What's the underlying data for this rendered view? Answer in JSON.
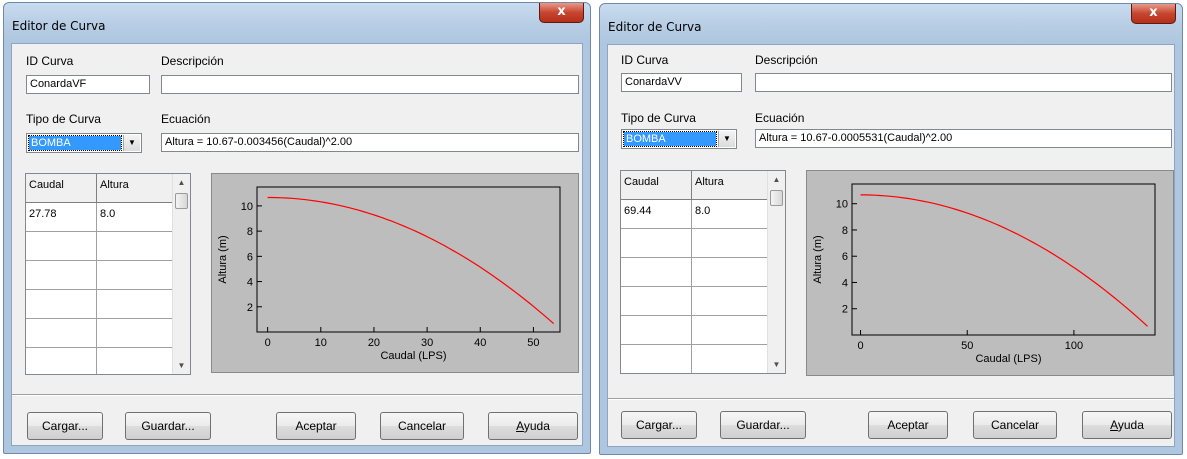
{
  "windows": [
    {
      "title": "Editor de Curva",
      "close_glyph": "x",
      "id_label": "ID Curva",
      "id_value": "ConardaVF",
      "desc_label": "Descripción",
      "desc_value": "",
      "type_label": "Tipo de Curva",
      "type_value": "BOMBA",
      "eq_label": "Ecuación",
      "eq_value": "Altura = 10.67-0.003456(Caudal)^2.00",
      "table": {
        "headers": [
          "Caudal",
          "Altura"
        ],
        "rows": [
          [
            "27.78",
            "8.0"
          ],
          [
            "",
            ""
          ],
          [
            "",
            ""
          ],
          [
            "",
            ""
          ],
          [
            "",
            ""
          ],
          [
            "",
            ""
          ]
        ]
      },
      "buttons": {
        "load": "Cargar...",
        "save": "Guardar...",
        "ok": "Aceptar",
        "cancel": "Cancelar",
        "help_prefix": "",
        "help_underlined": "A",
        "help_rest": "yuda"
      },
      "chart_data": {
        "type": "line",
        "xlabel": "Caudal (LPS)",
        "ylabel": "Altura (m)",
        "xlim": [
          -2,
          55
        ],
        "ylim": [
          0,
          11.5
        ],
        "xticks": [
          0,
          10,
          20,
          30,
          40,
          50
        ],
        "yticks": [
          2,
          4,
          6,
          8,
          10
        ],
        "curve": {
          "h0": 10.67,
          "coef": 0.003456,
          "exp": 2.0,
          "xmax": 53.8
        },
        "color": "#ff0000"
      }
    },
    {
      "title": "Editor de Curva",
      "close_glyph": "x",
      "id_label": "ID Curva",
      "id_value": "ConardaVV",
      "desc_label": "Descripción",
      "desc_value": "",
      "type_label": "Tipo de Curva",
      "type_value": "BOMBA",
      "eq_label": "Ecuación",
      "eq_value": "Altura = 10.67-0.0005531(Caudal)^2.00",
      "table": {
        "headers": [
          "Caudal",
          "Altura"
        ],
        "rows": [
          [
            "69.44",
            "8.0"
          ],
          [
            "",
            ""
          ],
          [
            "",
            ""
          ],
          [
            "",
            ""
          ],
          [
            "",
            ""
          ],
          [
            "",
            ""
          ]
        ]
      },
      "buttons": {
        "load": "Cargar...",
        "save": "Guardar...",
        "ok": "Aceptar",
        "cancel": "Cancelar",
        "help_prefix": "",
        "help_underlined": "A",
        "help_rest": "yuda"
      },
      "chart_data": {
        "type": "line",
        "xlabel": "Caudal (LPS)",
        "ylabel": "Altura (m)",
        "xlim": [
          -4,
          138
        ],
        "ylim": [
          0,
          11.5
        ],
        "xticks": [
          0,
          50,
          100
        ],
        "yticks": [
          2,
          4,
          6,
          8,
          10
        ],
        "curve": {
          "h0": 10.67,
          "coef": 0.0005531,
          "exp": 2.0,
          "xmax": 134.5
        },
        "color": "#ff0000"
      }
    }
  ]
}
